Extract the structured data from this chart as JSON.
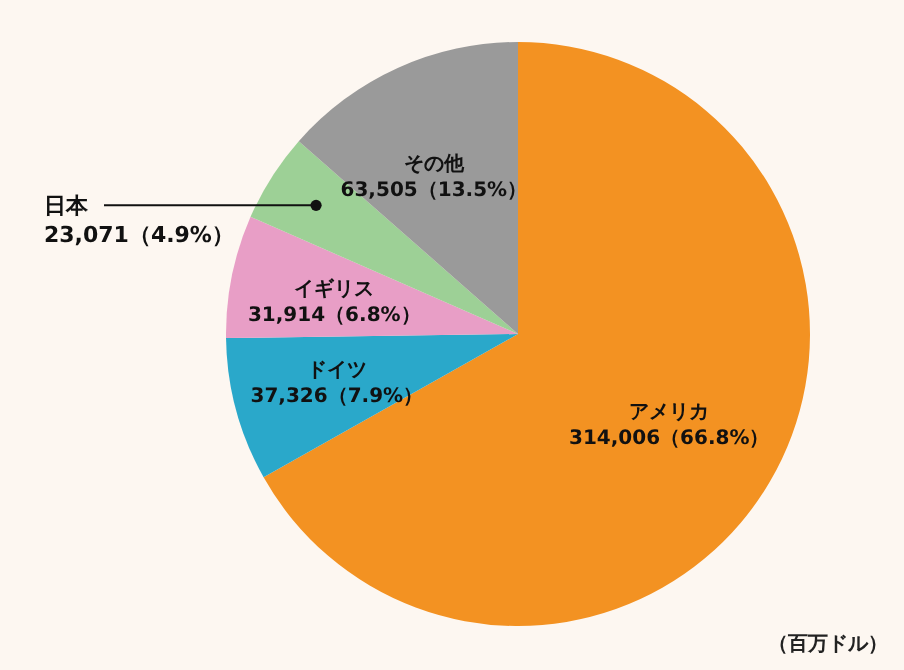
{
  "chart_data": {
    "type": "pie",
    "categories": [
      "アメリカ",
      "ドイツ",
      "イギリス",
      "日本",
      "その他"
    ],
    "values": [
      314006,
      37326,
      31914,
      23071,
      63505
    ],
    "colors": [
      "#f39222",
      "#2aa8ca",
      "#e89ec6",
      "#9dd096",
      "#9a9a9a"
    ],
    "value_labels": [
      "314,006（66.8%）",
      "37,326（7.9%）",
      "31,914（6.8%）",
      "23,071（4.9%）",
      "63,505（13.5%）"
    ],
    "annotations": [
      "（百万ドル）"
    ]
  }
}
